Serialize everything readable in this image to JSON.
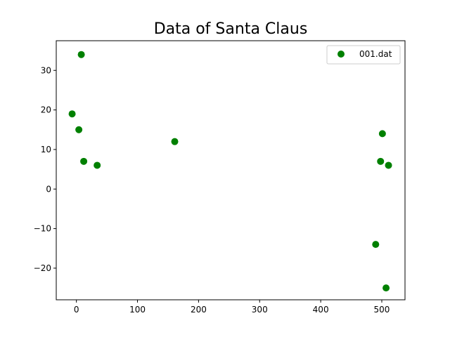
{
  "chart_data": {
    "type": "scatter",
    "title": "Data of Santa Claus",
    "xlabel": "",
    "ylabel": "",
    "xlim": [
      -33,
      538
    ],
    "ylim": [
      -28,
      37.5
    ],
    "xticks": [
      0,
      100,
      200,
      300,
      400,
      500
    ],
    "yticks": [
      -20,
      -10,
      0,
      10,
      20,
      30
    ],
    "xtick_labels": [
      "0",
      "100",
      "200",
      "300",
      "400",
      "500"
    ],
    "ytick_labels": [
      "−20",
      "−10",
      "0",
      "10",
      "20",
      "30"
    ],
    "grid": false,
    "legend_position": "top-right",
    "series": [
      {
        "name": "001.dat",
        "color": "#008000",
        "marker": "circle",
        "x": [
          -7,
          4,
          8,
          12,
          34,
          161,
          490,
          498,
          501,
          507,
          511
        ],
        "y": [
          19,
          15,
          34,
          7,
          6,
          12,
          -14,
          7,
          14,
          -25,
          6
        ]
      }
    ]
  }
}
